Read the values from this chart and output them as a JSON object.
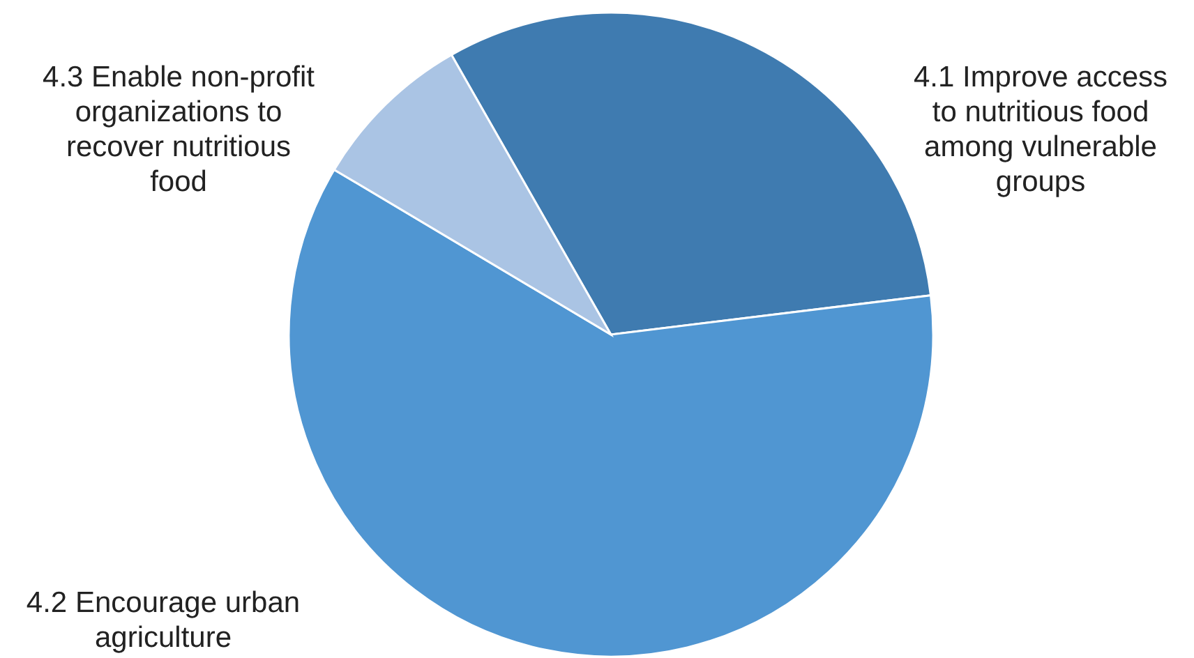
{
  "chart_data": {
    "type": "pie",
    "categories": [
      "4.1 Improve access to nutritious food among vulnerable groups",
      "4.2 Encourage urban agriculture",
      "4.3 Enable non-profit organizations to recover nutritious food"
    ],
    "values": [
      31.3,
      60.5,
      8.2
    ],
    "colors": [
      "#3f7bb0",
      "#5096d2",
      "#aac4e4"
    ]
  }
}
